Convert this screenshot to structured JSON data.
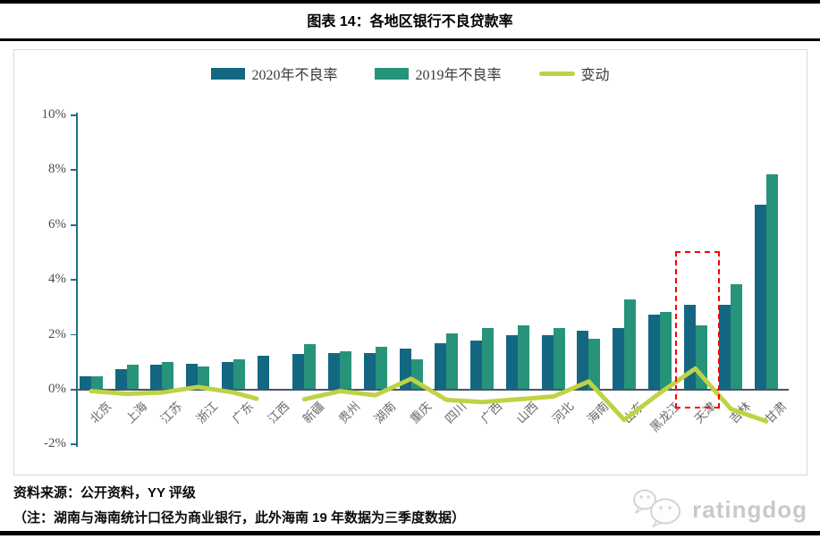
{
  "page": {
    "title": "图表 14：各地区银行不良贷款率",
    "source_line": "资料来源：公开资料，YY 评级",
    "note_line": "（注：湖南与海南统计口径为商业银行，此外海南 19 年数据为三季度数据）",
    "brand": "ratingdog"
  },
  "legend": [
    {
      "label": "2020年不良率",
      "type": "bar",
      "color": "#136781"
    },
    {
      "label": "2019年不良率",
      "type": "bar",
      "color": "#27937a"
    },
    {
      "label": "变动",
      "type": "line",
      "color": "#bfd244"
    }
  ],
  "chart_data": {
    "type": "bar",
    "subtype": "grouped-bars-with-line",
    "title": "图表 14：各地区银行不良贷款率",
    "categories": [
      "北京",
      "上海",
      "江苏",
      "浙江",
      "广东",
      "江西",
      "新疆",
      "贵州",
      "湖南",
      "重庆",
      "四川",
      "广西",
      "山西",
      "河北",
      "海南",
      "山东",
      "黑龙江",
      "天津",
      "吉林",
      "甘肃"
    ],
    "series": [
      {
        "name": "2020年不良率",
        "type": "bar",
        "color": "#136781",
        "values": [
          0.5,
          0.75,
          0.9,
          0.95,
          1.0,
          1.25,
          1.3,
          1.35,
          1.35,
          1.5,
          1.7,
          1.8,
          2.0,
          2.0,
          2.15,
          2.25,
          2.75,
          3.1,
          3.1,
          6.75
        ]
      },
      {
        "name": "2019年不良率",
        "type": "bar",
        "color": "#27937a",
        "values": [
          0.5,
          0.9,
          1.0,
          0.85,
          1.1,
          null,
          1.65,
          1.4,
          1.55,
          1.1,
          2.05,
          2.25,
          2.35,
          2.25,
          1.85,
          3.3,
          2.85,
          2.35,
          3.85,
          7.85
        ]
      },
      {
        "name": "变动",
        "type": "line",
        "color": "#bfd244",
        "values": [
          -0.05,
          -0.15,
          -0.1,
          0.1,
          -0.1,
          null,
          -0.35,
          -0.05,
          -0.2,
          0.4,
          -0.37,
          -0.45,
          -0.35,
          -0.25,
          0.3,
          -1.1,
          -0.12,
          0.77,
          -0.7,
          -1.15
        ]
      }
    ],
    "ylim": [
      -2,
      10
    ],
    "ytick_step": 2,
    "ytick_labels": [
      "10%",
      "8%",
      "6%",
      "4%",
      "2%",
      "0%",
      "-2%"
    ],
    "xlabel": "",
    "ylabel": "",
    "grid": false,
    "legend_position": "top-center",
    "annotation": {
      "type": "dashed-box",
      "category": "天津",
      "color": "#fe0000",
      "value_top": 5.05,
      "value_bottom": -0.55
    }
  }
}
